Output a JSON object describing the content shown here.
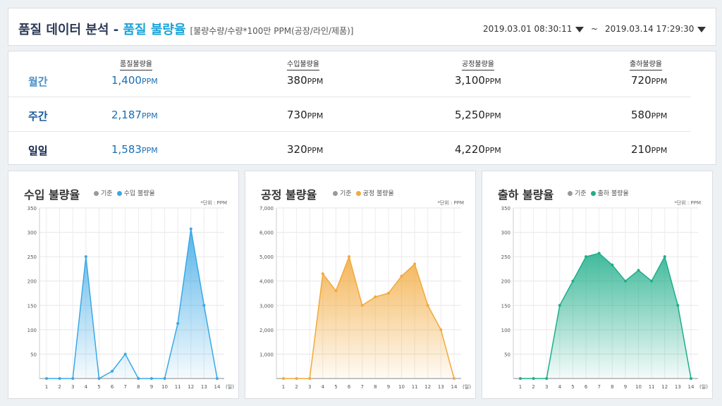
{
  "header": {
    "title": "품질 데이터 분석 - ",
    "title_highlight": "품질 불량율",
    "title_note": "[불량수량/수량*100만 PPM(공장/라인/제품)]",
    "date_start": "2019.03.01 08:30:11",
    "tilde": "~",
    "date_end": "2019.03.14 17:29:30"
  },
  "summary": {
    "columns": [
      "품질불량율",
      "수입불량율",
      "공정불량율",
      "출하불량율"
    ],
    "unit": "PPM",
    "rows": [
      {
        "label": "월간",
        "color": "#4a90c8",
        "values": [
          "1,400",
          "380",
          "3,100",
          "720"
        ]
      },
      {
        "label": "주간",
        "color": "#1a5a9a",
        "values": [
          "2,187",
          "730",
          "5,250",
          "580"
        ]
      },
      {
        "label": "일일",
        "color": "#10234a",
        "values": [
          "1,583",
          "320",
          "4,220",
          "210"
        ]
      }
    ]
  },
  "chart_data": [
    {
      "type": "area",
      "title": "수입 불량율",
      "legend": [
        "기준",
        "수입 불량율"
      ],
      "unit_note": "*단위 : PPM",
      "x": [
        1,
        2,
        3,
        4,
        5,
        6,
        7,
        8,
        9,
        10,
        11,
        12,
        13,
        14
      ],
      "x_suffix": "(일)",
      "values": [
        0,
        0,
        0,
        250,
        0,
        15,
        50,
        0,
        0,
        0,
        113,
        307,
        150,
        0
      ],
      "ylim": [
        0,
        350
      ],
      "yticks": [
        50,
        100,
        150,
        200,
        250,
        300,
        350
      ],
      "color": "#3aa8e6",
      "grid": true
    },
    {
      "type": "area",
      "title": "공정 불량율",
      "legend": [
        "기준",
        "공정 불량율"
      ],
      "unit_note": "*단위 : PPM",
      "x": [
        1,
        2,
        3,
        4,
        5,
        6,
        7,
        8,
        9,
        10,
        11,
        12,
        13,
        14
      ],
      "x_suffix": "(일)",
      "values": [
        0,
        0,
        0,
        4300,
        3600,
        5000,
        3000,
        3350,
        3500,
        4200,
        4700,
        3000,
        2000,
        0
      ],
      "ylim": [
        0,
        7000
      ],
      "yticks": [
        1000,
        2000,
        3000,
        4000,
        5000,
        6000,
        7000
      ],
      "ytick_labels": [
        "1,000",
        "2,000",
        "3,000",
        "4,000",
        "5,000",
        "6,000",
        "7,000"
      ],
      "color": "#f2a93b",
      "grid": true
    },
    {
      "type": "area",
      "title": "출하 불량율",
      "legend": [
        "기준",
        "출하 불량율"
      ],
      "unit_note": "*단위 : PPM",
      "x": [
        1,
        2,
        3,
        4,
        5,
        6,
        7,
        8,
        9,
        10,
        11,
        12,
        13,
        14
      ],
      "x_suffix": "(일)",
      "values": [
        0,
        0,
        0,
        150,
        200,
        250,
        257,
        233,
        200,
        222,
        200,
        250,
        150,
        0
      ],
      "ylim": [
        0,
        350
      ],
      "yticks": [
        50,
        100,
        150,
        200,
        250,
        300,
        350
      ],
      "color": "#1fae8a",
      "grid": true
    }
  ]
}
